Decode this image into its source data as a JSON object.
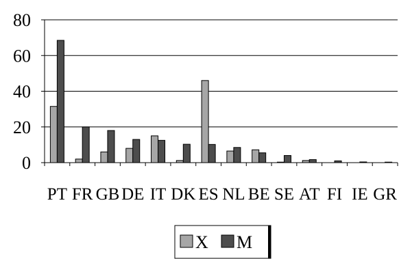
{
  "colors": {
    "X": "#a6a6a6",
    "M": "#4d4d4d",
    "grid": "#000000",
    "stroke": "#000000"
  },
  "chart_data": {
    "type": "bar",
    "title": "",
    "xlabel": "",
    "ylabel": "",
    "ylim": [
      0,
      80
    ],
    "yticks": [
      0,
      20,
      40,
      60,
      80
    ],
    "grid": true,
    "legend_position": "bottom-center",
    "categories": [
      "PT",
      "FR",
      "GB",
      "DE",
      "IT",
      "DK",
      "ES",
      "NL",
      "BE",
      "SE",
      "AT",
      "FI",
      "IE",
      "GR"
    ],
    "series": [
      {
        "name": "X",
        "values": [
          31.5,
          2,
          6,
          8,
          15,
          1.2,
          46,
          6.5,
          7.2,
          0.3,
          1.2,
          0,
          0,
          0
        ]
      },
      {
        "name": "M",
        "values": [
          68.5,
          20,
          18,
          13,
          12.5,
          10.3,
          10.2,
          8.5,
          5.5,
          4,
          1.7,
          1,
          0.4,
          0.3
        ]
      }
    ]
  }
}
